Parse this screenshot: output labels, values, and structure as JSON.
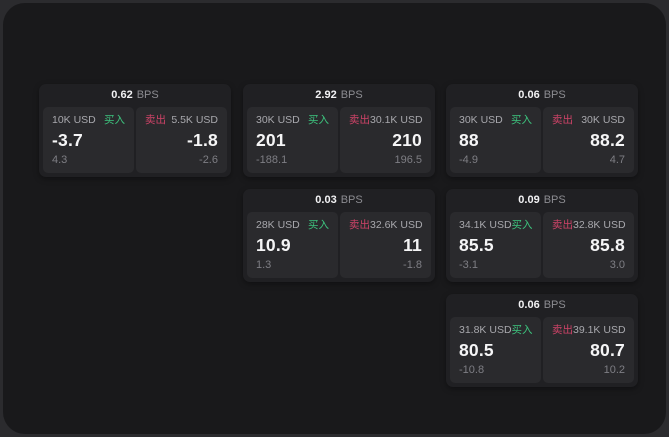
{
  "page": {
    "bps_suffix": "BPS"
  },
  "labels": {
    "buy": "买入",
    "sell": "卖出"
  },
  "colors": {
    "buy_green": "#3dc47e",
    "sell_red": "#cf4368",
    "panel_bg": "#19191b",
    "card_bg": "#202023",
    "subcard_bg": "#2a2a2d"
  },
  "cards": [
    {
      "bps": "0.62",
      "col": 1,
      "row": 1,
      "buy": {
        "amount": "10K USD",
        "value": "-3.7",
        "sub": "4.3"
      },
      "sell": {
        "amount": "5.5K USD",
        "value": "-1.8",
        "sub": "-2.6"
      }
    },
    {
      "bps": "2.92",
      "col": 2,
      "row": 1,
      "buy": {
        "amount": "30K USD",
        "value": "201",
        "sub": "-188.1"
      },
      "sell": {
        "amount": "30.1K USD",
        "value": "210",
        "sub": "196.5"
      }
    },
    {
      "bps": "0.06",
      "col": 3,
      "row": 1,
      "buy": {
        "amount": "30K USD",
        "value": "88",
        "sub": "-4.9"
      },
      "sell": {
        "amount": "30K USD",
        "value": "88.2",
        "sub": "4.7"
      }
    },
    {
      "bps": "0.03",
      "col": 2,
      "row": 2,
      "buy": {
        "amount": "28K USD",
        "value": "10.9",
        "sub": "1.3"
      },
      "sell": {
        "amount": "32.6K USD",
        "value": "11",
        "sub": "-1.8"
      }
    },
    {
      "bps": "0.09",
      "col": 3,
      "row": 2,
      "buy": {
        "amount": "34.1K USD",
        "value": "85.5",
        "sub": "-3.1"
      },
      "sell": {
        "amount": "32.8K USD",
        "value": "85.8",
        "sub": "3.0"
      }
    },
    {
      "bps": "0.06",
      "col": 3,
      "row": 3,
      "buy": {
        "amount": "31.8K USD",
        "value": "80.5",
        "sub": "-10.8"
      },
      "sell": {
        "amount": "39.1K USD",
        "value": "80.7",
        "sub": "10.2"
      }
    }
  ]
}
